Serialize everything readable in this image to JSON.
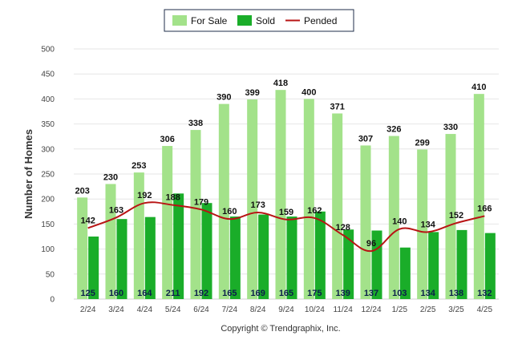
{
  "chart_data": {
    "type": "bar",
    "categories": [
      "2/24",
      "3/24",
      "4/24",
      "5/24",
      "6/24",
      "7/24",
      "8/24",
      "9/24",
      "10/24",
      "11/24",
      "12/24",
      "1/25",
      "2/25",
      "3/25",
      "4/25"
    ],
    "series": [
      {
        "name": "For Sale",
        "kind": "bar",
        "color": "#a3e28a",
        "values": [
          203,
          230,
          253,
          306,
          338,
          390,
          399,
          418,
          400,
          371,
          307,
          326,
          299,
          330,
          410
        ]
      },
      {
        "name": "Sold",
        "kind": "bar",
        "color": "#1aad29",
        "values": [
          125,
          160,
          164,
          211,
          192,
          165,
          169,
          165,
          175,
          139,
          137,
          103,
          134,
          138,
          132
        ]
      },
      {
        "name": "Pended",
        "kind": "line",
        "color": "#b81414",
        "values": [
          142,
          163,
          192,
          188,
          179,
          160,
          173,
          159,
          162,
          128,
          96,
          140,
          134,
          152,
          166
        ]
      }
    ],
    "ylabel": "Number of Homes",
    "xlabel": "",
    "ylim": [
      0,
      500
    ],
    "yticks": [
      0,
      50,
      100,
      150,
      200,
      250,
      300,
      350,
      400,
      450,
      500
    ],
    "grid": true,
    "legend_position": "top-center"
  },
  "footer": {
    "copyright": "Copyright © Trendgraphix, Inc."
  }
}
